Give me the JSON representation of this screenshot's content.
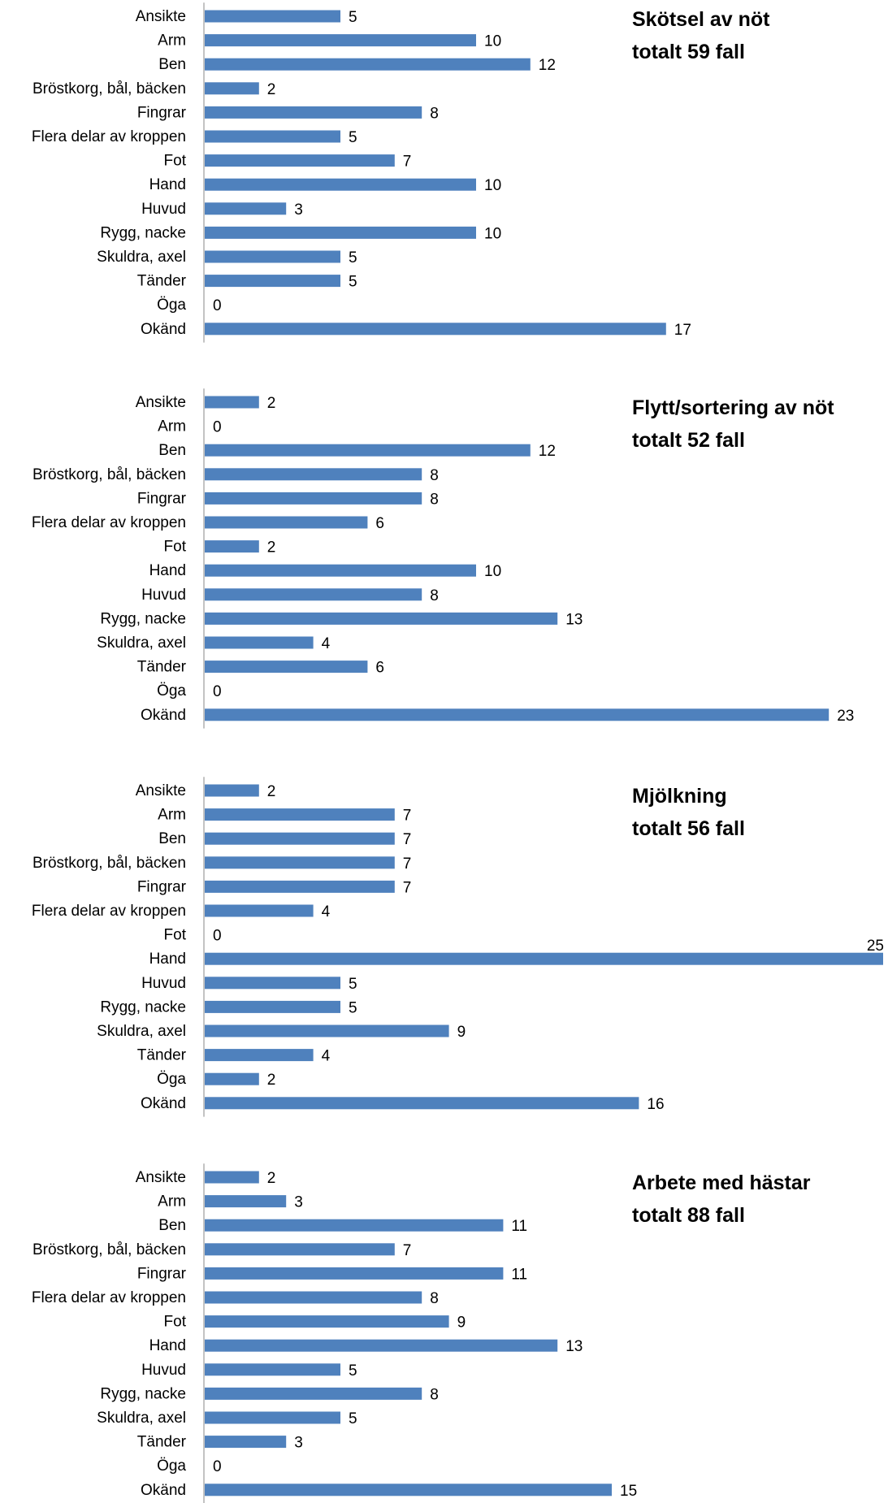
{
  "charts": [
    {
      "title": "Skötsel av nöt",
      "subtitle": "totalt 59 fall"
    },
    {
      "title": "Flytt/sortering av nöt",
      "subtitle": "totalt 52 fall"
    },
    {
      "title": "Mjölkning",
      "subtitle": "totalt 56 fall"
    },
    {
      "title": "Arbete med hästar",
      "subtitle": "totalt 88 fall"
    }
  ],
  "colors": {
    "bar": "#4f81bd",
    "axis": "#9b9b9b",
    "text": "#000000"
  },
  "chart_data": [
    {
      "type": "bar",
      "orientation": "horizontal",
      "title": "Skötsel av nöt",
      "subtitle": "totalt 59 fall",
      "categories": [
        "Ansikte",
        "Arm",
        "Ben",
        "Bröstkorg, bål, bäcken",
        "Fingrar",
        "Flera delar av kroppen",
        "Fot",
        "Hand",
        "Huvud",
        "Rygg, nacke",
        "Skuldra, axel",
        "Tänder",
        "Öga",
        "Okänd"
      ],
      "values": [
        5,
        10,
        12,
        2,
        8,
        5,
        7,
        10,
        3,
        10,
        5,
        5,
        0,
        17
      ],
      "xlim": [
        0,
        25
      ],
      "grid": false
    },
    {
      "type": "bar",
      "orientation": "horizontal",
      "title": "Flytt/sortering av nöt",
      "subtitle": "totalt 52 fall",
      "categories": [
        "Ansikte",
        "Arm",
        "Ben",
        "Bröstkorg, bål, bäcken",
        "Fingrar",
        "Flera delar av kroppen",
        "Fot",
        "Hand",
        "Huvud",
        "Rygg, nacke",
        "Skuldra, axel",
        "Tänder",
        "Öga",
        "Okänd"
      ],
      "values": [
        2,
        0,
        12,
        8,
        8,
        6,
        2,
        10,
        8,
        13,
        4,
        6,
        0,
        23
      ],
      "xlim": [
        0,
        25
      ],
      "grid": false
    },
    {
      "type": "bar",
      "orientation": "horizontal",
      "title": "Mjölkning",
      "subtitle": "totalt 56 fall",
      "categories": [
        "Ansikte",
        "Arm",
        "Ben",
        "Bröstkorg, bål, bäcken",
        "Fingrar",
        "Flera delar av kroppen",
        "Fot",
        "Hand",
        "Huvud",
        "Rygg, nacke",
        "Skuldra, axel",
        "Tänder",
        "Öga",
        "Okänd"
      ],
      "values": [
        2,
        7,
        7,
        7,
        7,
        4,
        0,
        25,
        5,
        5,
        9,
        4,
        2,
        16
      ],
      "xlim": [
        0,
        25
      ],
      "grid": false
    },
    {
      "type": "bar",
      "orientation": "horizontal",
      "title": "Arbete med hästar",
      "subtitle": "totalt 88 fall",
      "categories": [
        "Ansikte",
        "Arm",
        "Ben",
        "Bröstkorg, bål, bäcken",
        "Fingrar",
        "Flera delar av kroppen",
        "Fot",
        "Hand",
        "Huvud",
        "Rygg, nacke",
        "Skuldra, axel",
        "Tänder",
        "Öga",
        "Okänd"
      ],
      "values": [
        2,
        3,
        11,
        7,
        11,
        8,
        9,
        13,
        5,
        8,
        5,
        3,
        0,
        15
      ],
      "xlim": [
        0,
        25
      ],
      "grid": false
    }
  ]
}
